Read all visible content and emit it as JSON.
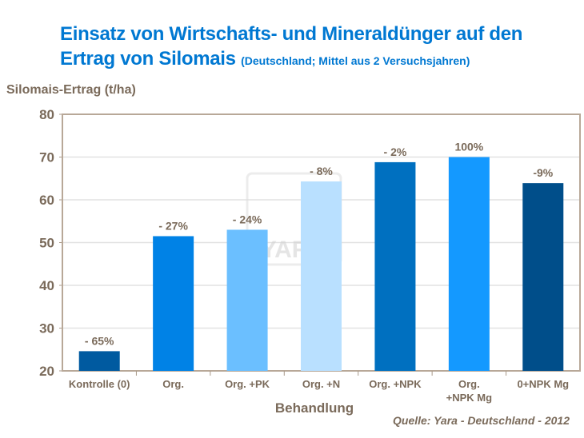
{
  "title": "Einsatz von Wirtschafts- und Mineraldünger auf den",
  "title_line2": "Ertrag von Silomais",
  "subtitle": "(Deutschland;  Mittel aus 2 Versuchsjahren)",
  "source": "Quelle: Yara - Deutschland - 2012",
  "watermark": "YARA",
  "chart_data": {
    "type": "bar",
    "ylabel": "Silomais-Ertrag (t/ha)",
    "xlabel": "Behandlung",
    "ylim": [
      20,
      80
    ],
    "yticks": [
      20,
      30,
      40,
      50,
      60,
      70,
      80
    ],
    "grid": true,
    "categories": [
      [
        "Kontrolle (0)"
      ],
      [
        "Org."
      ],
      [
        "Org. +PK"
      ],
      [
        "Org. +N"
      ],
      [
        "Org. +NPK"
      ],
      [
        "Org.",
        "+NPK Mg"
      ],
      [
        "0+NPK Mg"
      ]
    ],
    "values": [
      24.6,
      51.5,
      53.0,
      64.3,
      68.8,
      70.0,
      63.9
    ],
    "data_labels": [
      "- 65%",
      "- 27%",
      "- 24%",
      "- 8%",
      "- 2%",
      "100%",
      "-9%"
    ],
    "colors": [
      "#005AA0",
      "#0082E6",
      "#6BBFFF",
      "#B9E0FF",
      "#0070C0",
      "#1499FF",
      "#004E8A"
    ]
  }
}
